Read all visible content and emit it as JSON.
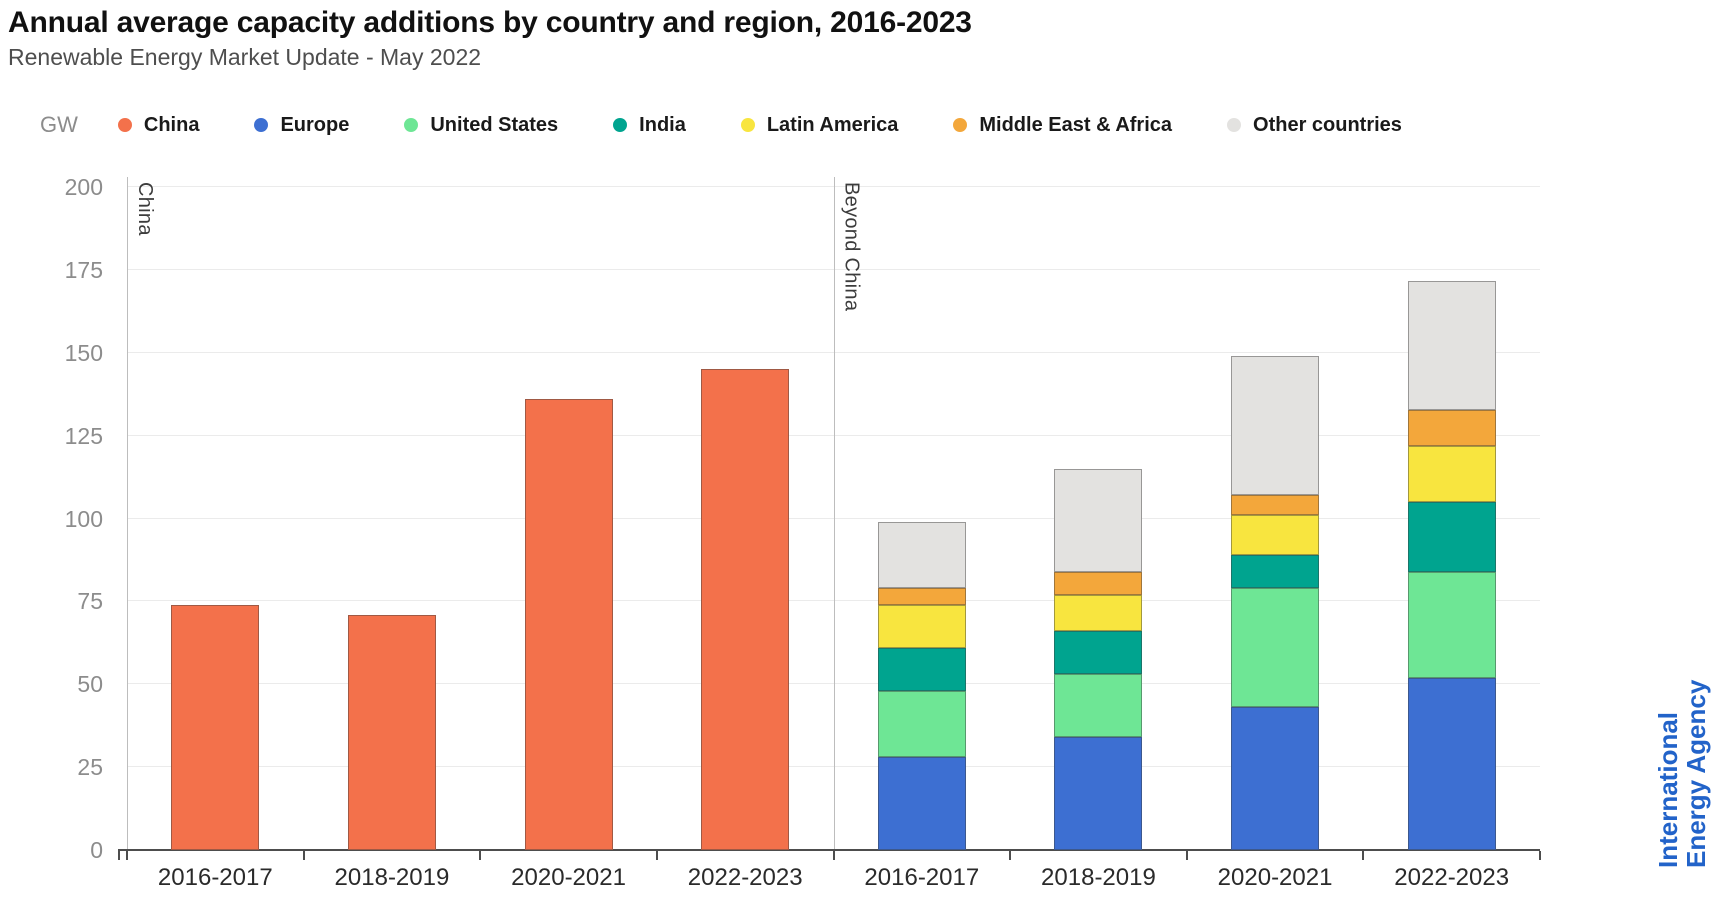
{
  "title": "Annual average capacity additions by country and region, 2016-2023",
  "subtitle": "Renewable Energy Market Update - May 2022",
  "axis_unit": "GW",
  "colors": {
    "china": "#F3714B",
    "europe": "#3D6FD2",
    "united_states": "#6EE695",
    "india": "#00A48F",
    "latin_america": "#F8E53F",
    "middle_east_africa": "#F3A73B",
    "other_countries": "#E3E2E0",
    "gridline": "#EBEBEB",
    "axis": "#4D4D4D",
    "watermark_blue": "#2263C9"
  },
  "legend": [
    {
      "label": "China",
      "color": "#F3714B"
    },
    {
      "label": "Europe",
      "color": "#3D6FD2"
    },
    {
      "label": "United States",
      "color": "#6EE695"
    },
    {
      "label": "India",
      "color": "#00A48F"
    },
    {
      "label": "Latin America",
      "color": "#F8E53F"
    },
    {
      "label": "Middle East & Africa",
      "color": "#F3A73B"
    },
    {
      "label": "Other countries",
      "color": "#E3E2E0"
    }
  ],
  "watermark": {
    "line1": "International",
    "line2": "Energy Agency",
    "color": "#2263C9"
  },
  "chart_data": {
    "type": "bar",
    "title": "Annual average capacity additions by country and region, 2016-2023",
    "subtitle": "Renewable Energy Market Update - May 2022",
    "ylabel": "GW",
    "ylim": [
      0,
      200
    ],
    "ytick_step": 25,
    "yticks": [
      0,
      25,
      50,
      75,
      100,
      125,
      150,
      175,
      200
    ],
    "grid": true,
    "legend_position": "top",
    "categories": [
      "2016-2017",
      "2018-2019",
      "2020-2021",
      "2022-2023"
    ],
    "panels": [
      {
        "label": "China",
        "stacked": false,
        "series": [
          {
            "name": "China",
            "color": "#F3714B",
            "values": [
              74,
              71,
              136,
              145
            ]
          }
        ],
        "totals": [
          74,
          71,
          136,
          145
        ]
      },
      {
        "label": "Beyond China",
        "stacked": true,
        "series": [
          {
            "name": "Europe",
            "color": "#3D6FD2",
            "values": [
              28,
              34,
              43,
              52
            ]
          },
          {
            "name": "United States",
            "color": "#6EE695",
            "values": [
              20,
              19,
              36,
              32
            ]
          },
          {
            "name": "India",
            "color": "#00A48F",
            "values": [
              13,
              13,
              10,
              21
            ]
          },
          {
            "name": "Latin America",
            "color": "#F8E53F",
            "values": [
              13,
              11,
              12,
              17
            ]
          },
          {
            "name": "Middle East & Africa",
            "color": "#F3A73B",
            "values": [
              5,
              7,
              6,
              11
            ]
          },
          {
            "name": "Other countries",
            "color": "#E3E2E0",
            "values": [
              20,
              31,
              42,
              39
            ]
          }
        ],
        "totals": [
          99,
          115,
          149,
          172
        ]
      }
    ]
  }
}
